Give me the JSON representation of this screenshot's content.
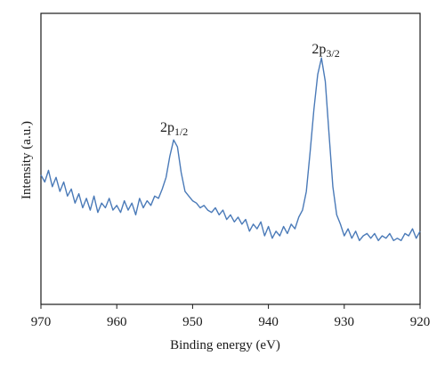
{
  "chart_data": {
    "type": "line",
    "xlabel": "Binding energy (eV)",
    "ylabel": "Intensity (a.u.)",
    "xlim": [
      970,
      920
    ],
    "x_reversed": true,
    "y_ticks_labeled": false,
    "ylim": [
      0,
      100
    ],
    "xticks": [
      970,
      960,
      950,
      940,
      930,
      920
    ],
    "grid": false,
    "legend": "none",
    "colors": {
      "line": "#4a7ab8",
      "axis": "#1a1a1a"
    },
    "annotations": [
      {
        "base": "2p",
        "sub": "1/2",
        "x": 952.2,
        "y": 62
      },
      {
        "base": "2p",
        "sub": "3/2",
        "x": 932.2,
        "y": 94
      }
    ],
    "series": [
      {
        "x": [
          970.0,
          969.5,
          969.0,
          968.5,
          968.0,
          967.5,
          967.0,
          966.5,
          966.0,
          965.5,
          965.0,
          964.5,
          964.0,
          963.5,
          963.0,
          962.5,
          962.0,
          961.5,
          961.0,
          960.5,
          960.0,
          959.5,
          959.0,
          958.5,
          958.0,
          957.5,
          957.0,
          956.5,
          956.0,
          955.5,
          955.0,
          954.5,
          954.0,
          953.5,
          953.0,
          952.5,
          952.0,
          951.5,
          951.0,
          950.5,
          950.0,
          949.5,
          949.0,
          948.5,
          948.0,
          947.5,
          947.0,
          946.5,
          946.0,
          945.5,
          945.0,
          944.5,
          944.0,
          943.5,
          943.0,
          942.5,
          942.0,
          941.5,
          941.0,
          940.5,
          940.0,
          939.5,
          939.0,
          938.5,
          938.0,
          937.5,
          937.0,
          936.5,
          936.0,
          935.5,
          935.0,
          934.5,
          934.0,
          933.5,
          933.0,
          932.5,
          932.0,
          931.5,
          931.0,
          930.5,
          930.0,
          929.5,
          929.0,
          928.5,
          928.0,
          927.5,
          927.0,
          926.5,
          926.0,
          925.5,
          925.0,
          924.5,
          924.0,
          923.5,
          923.0,
          922.5,
          922.0,
          921.5,
          921.0,
          920.5,
          920.0
        ],
        "y": [
          45,
          42,
          47,
          40,
          44,
          38,
          42,
          36,
          39,
          33,
          37,
          31,
          35,
          30,
          36,
          29,
          33,
          31,
          35,
          30,
          32,
          29,
          34,
          30,
          33,
          28,
          35,
          31,
          34,
          32,
          36,
          35,
          39,
          44,
          53,
          60,
          57,
          46,
          38,
          36,
          34,
          33,
          31,
          32,
          30,
          29,
          31,
          28,
          30,
          26,
          28,
          25,
          27,
          24,
          26,
          21,
          24,
          22,
          25,
          19,
          23,
          18,
          21,
          19,
          23,
          20,
          24,
          22,
          27,
          30,
          38,
          55,
          73,
          88,
          95,
          85,
          62,
          40,
          28,
          24,
          19,
          22,
          18,
          21,
          17,
          19,
          20,
          18,
          20,
          17,
          19,
          18,
          20,
          17,
          18,
          17,
          20,
          19,
          22,
          18,
          21
        ]
      }
    ]
  }
}
